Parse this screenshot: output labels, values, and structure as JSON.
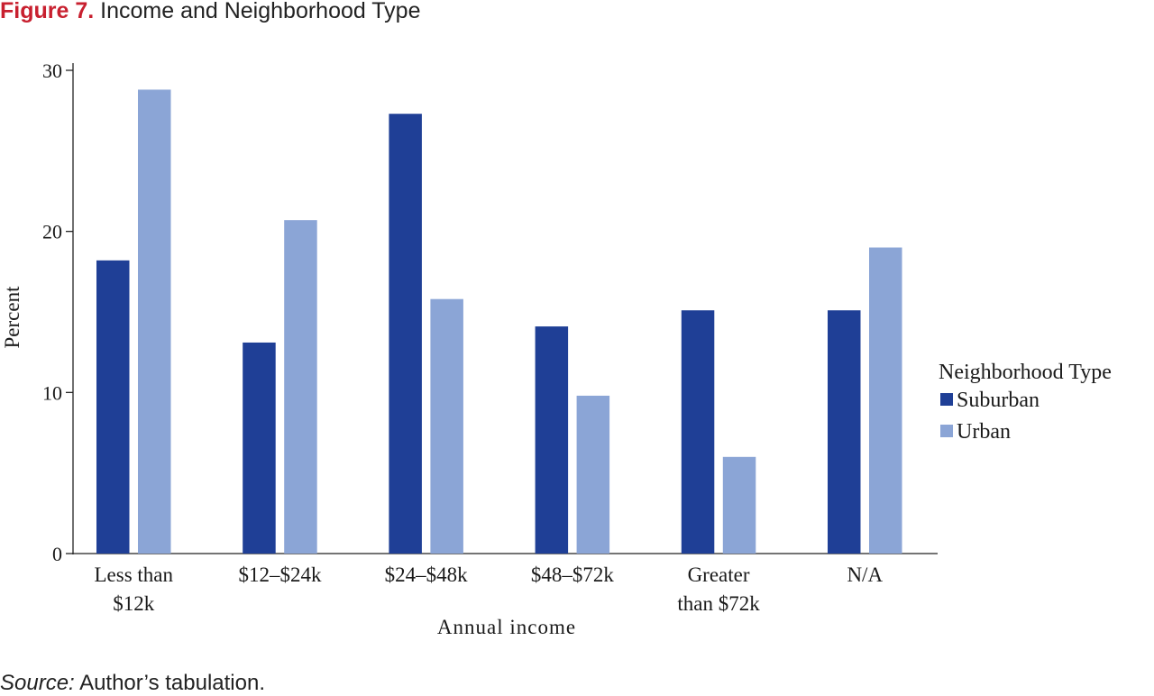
{
  "figure": {
    "label": "Figure 7.",
    "title": "Income and Neighborhood Type"
  },
  "source": {
    "label": "Source:",
    "text": "Author’s tabulation."
  },
  "chart_data": {
    "type": "bar",
    "categories": [
      [
        "Less than",
        "$12k"
      ],
      [
        "$12–$24k"
      ],
      [
        "$24–$48k"
      ],
      [
        "$48–$72k"
      ],
      [
        "Greater",
        "than $72k"
      ],
      [
        "N/A"
      ]
    ],
    "series": [
      {
        "name": "Suburban",
        "color": "#1f3f96",
        "values": [
          18.2,
          13.1,
          27.3,
          14.1,
          15.1,
          15.1
        ]
      },
      {
        "name": "Urban",
        "color": "#8ba5d6",
        "values": [
          28.8,
          20.7,
          15.8,
          9.8,
          6.0,
          19.0
        ]
      }
    ],
    "xlabel": "Annual income",
    "ylabel": "Percent",
    "ylim": [
      0,
      30
    ],
    "yticks": [
      0,
      10,
      20,
      30
    ],
    "legend": {
      "title": "Neighborhood Type",
      "position": "right"
    },
    "grid": false
  }
}
